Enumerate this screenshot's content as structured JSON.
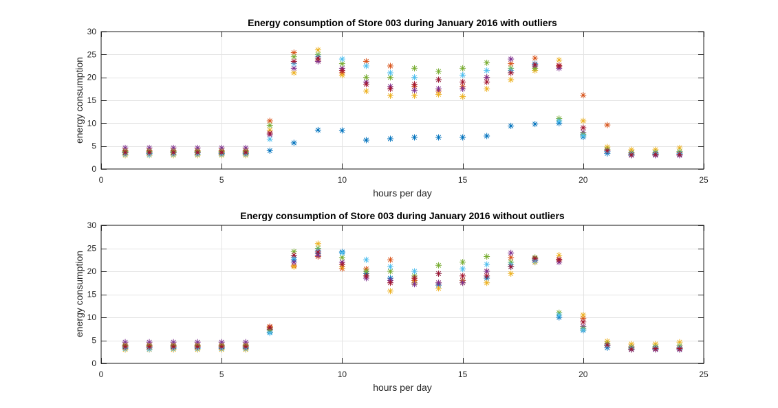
{
  "chart_data": [
    {
      "type": "scatter",
      "title": "Energy consumption of Store 003 during January 2016 with outliers",
      "xlabel": "hours per day",
      "ylabel": "energy consumption",
      "xlim": [
        0,
        25
      ],
      "ylim": [
        0,
        30
      ],
      "xticks": [
        0,
        5,
        10,
        15,
        20,
        25
      ],
      "yticks": [
        0,
        5,
        10,
        15,
        20,
        25,
        30
      ],
      "grid": true,
      "marker": "*",
      "hours": [
        1,
        2,
        3,
        4,
        5,
        6,
        7,
        8,
        9,
        10,
        11,
        12,
        13,
        14,
        15,
        16,
        17,
        18,
        19,
        20,
        21,
        22,
        23,
        24
      ],
      "series": [
        {
          "color": "#0072BD",
          "values": [
            3.5,
            3.4,
            3.5,
            3.5,
            3.4,
            3.4,
            4.0,
            5.7,
            8.5,
            8.4,
            6.3,
            6.6,
            6.9,
            6.9,
            6.9,
            7.2,
            9.4,
            9.8,
            10.0,
            7.0,
            3.4,
            3.0,
            3.1,
            3.0
          ]
        },
        {
          "color": "#D95319",
          "values": [
            4.0,
            4.0,
            4.0,
            4.0,
            4.0,
            4.0,
            10.5,
            25.4,
            23.8,
            21.0,
            23.5,
            22.5,
            18.0,
            17.0,
            18.0,
            20.0,
            23.0,
            24.2,
            22.4,
            16.1,
            9.6,
            3.6,
            3.4,
            3.5
          ]
        },
        {
          "color": "#EDB120",
          "values": [
            3.0,
            3.0,
            3.0,
            3.0,
            3.0,
            3.0,
            8.5,
            21.0,
            26.0,
            20.5,
            17.0,
            16.0,
            16.0,
            16.3,
            15.8,
            17.5,
            19.5,
            21.5,
            23.8,
            10.5,
            4.8,
            4.2,
            4.2,
            4.6
          ]
        },
        {
          "color": "#7E2F8E",
          "values": [
            4.6,
            4.6,
            4.6,
            4.6,
            4.6,
            4.6,
            7.5,
            22.0,
            23.5,
            22.0,
            19.0,
            18.0,
            17.2,
            17.5,
            17.5,
            20.0,
            24.0,
            22.5,
            22.0,
            8.0,
            3.8,
            3.0,
            3.0,
            3.0
          ]
        },
        {
          "color": "#77AC30",
          "values": [
            3.8,
            3.8,
            3.8,
            3.8,
            3.8,
            3.8,
            9.5,
            24.5,
            25.0,
            23.0,
            20.0,
            20.0,
            22.0,
            21.3,
            22.0,
            23.2,
            22.0,
            22.0,
            11.0,
            7.6,
            4.3,
            3.5,
            3.6,
            3.8
          ]
        },
        {
          "color": "#4DBEEE",
          "values": [
            3.2,
            3.1,
            3.2,
            3.2,
            3.2,
            3.2,
            6.5,
            23.0,
            24.5,
            24.0,
            22.5,
            21.0,
            20.0,
            19.5,
            20.5,
            21.5,
            21.5,
            23.0,
            10.5,
            7.3,
            3.8,
            3.3,
            3.4,
            3.4
          ]
        },
        {
          "color": "#A2142F",
          "values": [
            3.6,
            3.6,
            3.6,
            3.6,
            3.6,
            3.6,
            7.8,
            23.5,
            24.2,
            21.5,
            18.5,
            17.5,
            18.5,
            19.5,
            19.0,
            19.0,
            21.0,
            22.8,
            22.6,
            9.0,
            4.0,
            3.1,
            3.2,
            3.2
          ]
        }
      ]
    },
    {
      "type": "scatter",
      "title": "Energy consumption of Store 003 during January 2016 without outliers",
      "xlabel": "hours per day",
      "ylabel": "energy consumption",
      "xlim": [
        0,
        25
      ],
      "ylim": [
        0,
        30
      ],
      "xticks": [
        0,
        5,
        10,
        15,
        20,
        25
      ],
      "yticks": [
        0,
        5,
        10,
        15,
        20,
        25,
        30
      ],
      "grid": true,
      "marker": "*",
      "hours": [
        1,
        2,
        3,
        4,
        5,
        6,
        7,
        8,
        9,
        10,
        11,
        12,
        13,
        14,
        15,
        16,
        17,
        18,
        19,
        20,
        21,
        22,
        23,
        24
      ],
      "series": [
        {
          "color": "#0072BD",
          "values": [
            3.5,
            3.4,
            3.5,
            3.5,
            3.4,
            3.4,
            6.8,
            22.5,
            23.8,
            24.2,
            19.5,
            18.5,
            17.5,
            17.0,
            18.0,
            18.5,
            21.0,
            22.0,
            10.0,
            7.2,
            3.4,
            3.0,
            3.1,
            3.0
          ]
        },
        {
          "color": "#D95319",
          "values": [
            4.0,
            4.0,
            4.0,
            4.0,
            4.0,
            4.0,
            8.0,
            21.2,
            23.2,
            20.6,
            20.5,
            22.5,
            18.0,
            17.5,
            18.0,
            20.0,
            23.0,
            22.5,
            22.4,
            9.8,
            4.0,
            3.6,
            3.4,
            3.5
          ]
        },
        {
          "color": "#EDB120",
          "values": [
            3.0,
            3.0,
            3.0,
            3.0,
            3.0,
            3.0,
            7.6,
            21.0,
            26.0,
            21.0,
            19.0,
            15.7,
            17.5,
            16.3,
            17.5,
            17.5,
            19.5,
            22.0,
            23.5,
            10.5,
            4.8,
            4.2,
            4.2,
            4.6
          ]
        },
        {
          "color": "#7E2F8E",
          "values": [
            4.6,
            4.6,
            4.6,
            4.6,
            4.6,
            4.6,
            7.4,
            22.0,
            23.5,
            22.0,
            18.5,
            18.0,
            17.2,
            17.5,
            17.5,
            20.0,
            24.0,
            22.5,
            22.0,
            8.0,
            3.8,
            3.0,
            3.0,
            3.0
          ]
        },
        {
          "color": "#77AC30",
          "values": [
            3.8,
            3.8,
            3.8,
            3.8,
            3.8,
            3.8,
            7.2,
            24.3,
            25.0,
            23.0,
            20.0,
            20.0,
            19.0,
            21.3,
            22.0,
            23.2,
            22.0,
            23.0,
            11.0,
            7.6,
            4.3,
            3.5,
            3.6,
            3.8
          ]
        },
        {
          "color": "#4DBEEE",
          "values": [
            3.2,
            3.1,
            3.2,
            3.2,
            3.2,
            3.2,
            6.6,
            23.0,
            24.5,
            24.0,
            22.5,
            21.0,
            20.0,
            19.5,
            20.5,
            21.5,
            21.5,
            22.3,
            10.5,
            7.3,
            3.8,
            3.3,
            3.4,
            3.4
          ]
        },
        {
          "color": "#A2142F",
          "values": [
            3.6,
            3.6,
            3.6,
            3.6,
            3.6,
            3.6,
            7.8,
            23.5,
            24.2,
            21.5,
            19.0,
            17.5,
            18.5,
            19.5,
            19.0,
            19.0,
            21.0,
            22.8,
            22.6,
            9.0,
            4.0,
            3.1,
            3.2,
            3.2
          ]
        }
      ]
    }
  ]
}
